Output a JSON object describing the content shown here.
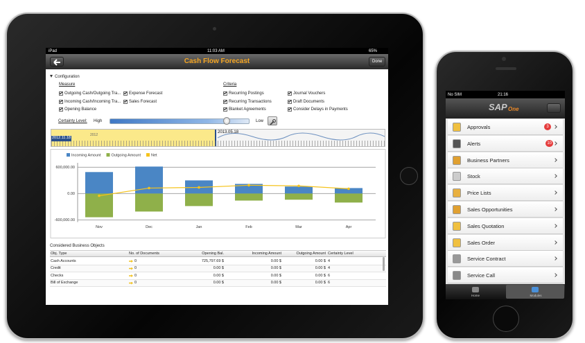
{
  "ipad": {
    "status": {
      "device": "iPad",
      "time": "11:03 AM",
      "battery": "65%"
    },
    "nav": {
      "title": "Cash Flow Forecast",
      "done": "Done"
    },
    "configuration": {
      "title": "Configuration",
      "measure": {
        "title": "Measure",
        "items": [
          "Outgoing Cash/Outgoing Tra...",
          "Expense Forecast",
          "Incoming Cash/Incoming Tra...",
          "Sales Forecast",
          "Opening Balance"
        ]
      },
      "criteria": {
        "title": "Criteria",
        "items": [
          "Recurring Postings",
          "Journal Vouchers",
          "Recurring Transactions",
          "Draft Documents",
          "Blanket Agreements",
          "Consider Delays in Payments"
        ]
      },
      "certainty": {
        "label": "Certainty Level:",
        "high": "High",
        "low": "Low"
      }
    },
    "timeline": {
      "year": "2012",
      "start": "2012.11.18",
      "end": "2013.05.18"
    },
    "table": {
      "title": "Considered Business Objects",
      "header": [
        "Obj. Type",
        "No. of Documents",
        "Opening Bal.",
        "Incoming Amount",
        "Outgoing Amount",
        "Certainty Level"
      ],
      "rows": [
        [
          "Cash Accounts",
          "0",
          "725,797.69 $",
          "0.00 $",
          "0.00 $",
          "4"
        ],
        [
          "Credit",
          "0",
          "0.00 $",
          "0.00 $",
          "0.00 $",
          "4"
        ],
        [
          "Checks",
          "0",
          "0.00 $",
          "0.00 $",
          "0.00 $",
          "6"
        ],
        [
          "Bill of Exchange",
          "0",
          "0.00 $",
          "0.00 $",
          "0.00 $",
          "6"
        ]
      ]
    }
  },
  "chart_data": {
    "type": "bar",
    "categories": [
      "Nov",
      "Dec",
      "Jan",
      "Feb",
      "Mar",
      "Apr"
    ],
    "series": [
      {
        "name": "Incoming Amount",
        "color": "#4a86c5",
        "values": [
          490000,
          615000,
          300000,
          220000,
          160000,
          125000
        ]
      },
      {
        "name": "Outgoing Amount",
        "color": "#8fb04a",
        "values": [
          -540000,
          -410000,
          -285000,
          -160000,
          -140000,
          -205000
        ]
      },
      {
        "name": "Net",
        "color": "#f5c31c",
        "type": "line",
        "values": [
          -50000,
          125000,
          140000,
          190000,
          175000,
          110000
        ]
      }
    ],
    "ylim": [
      -650000,
      700000
    ],
    "yticks": [
      {
        "value": -600000,
        "label": "-600,000.00"
      },
      {
        "value": 0,
        "label": "0.00"
      },
      {
        "value": 600000,
        "label": "600,000.00"
      }
    ],
    "grid": true,
    "legend": "top"
  },
  "iphone": {
    "status": {
      "carrier": "No SIM",
      "time": "21:16"
    },
    "logo": {
      "brand": "SAP",
      "product": "One"
    },
    "menu": [
      {
        "label": "Approvals",
        "badge": "3"
      },
      {
        "label": "Alerts",
        "badge": "10"
      },
      {
        "label": "Business Partners"
      },
      {
        "label": "Stock"
      },
      {
        "label": "Price Lists"
      },
      {
        "label": "Sales Opportunities"
      },
      {
        "label": "Sales Quotation"
      },
      {
        "label": "Sales Order"
      },
      {
        "label": "Service Contract"
      },
      {
        "label": "Service Call"
      }
    ],
    "tabs": [
      "Home",
      "Modules"
    ]
  }
}
